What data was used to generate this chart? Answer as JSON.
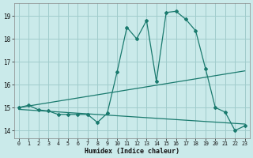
{
  "xlabel": "Humidex (Indice chaleur)",
  "background_color": "#caeaea",
  "grid_color": "#a0cccc",
  "line_color": "#1a7a6e",
  "x_ticks": [
    0,
    1,
    2,
    3,
    4,
    5,
    6,
    7,
    8,
    9,
    10,
    11,
    12,
    13,
    14,
    15,
    16,
    17,
    18,
    19,
    20,
    21,
    22,
    23
  ],
  "y_ticks": [
    14,
    15,
    16,
    17,
    18,
    19
  ],
  "xlim": [
    -0.5,
    23.5
  ],
  "ylim": [
    13.65,
    19.55
  ],
  "main_y": [
    15.0,
    15.1,
    14.9,
    14.85,
    14.7,
    14.7,
    14.7,
    14.7,
    14.35,
    14.75,
    16.55,
    18.5,
    18.0,
    18.8,
    16.15,
    19.15,
    19.2,
    18.85,
    18.35,
    16.7,
    15.0,
    14.8,
    14.0,
    14.2
  ],
  "upper_line_x": [
    0,
    23
  ],
  "upper_line_y": [
    15.0,
    16.6
  ],
  "lower_line_x": [
    0,
    23
  ],
  "lower_line_y": [
    14.92,
    14.28
  ]
}
